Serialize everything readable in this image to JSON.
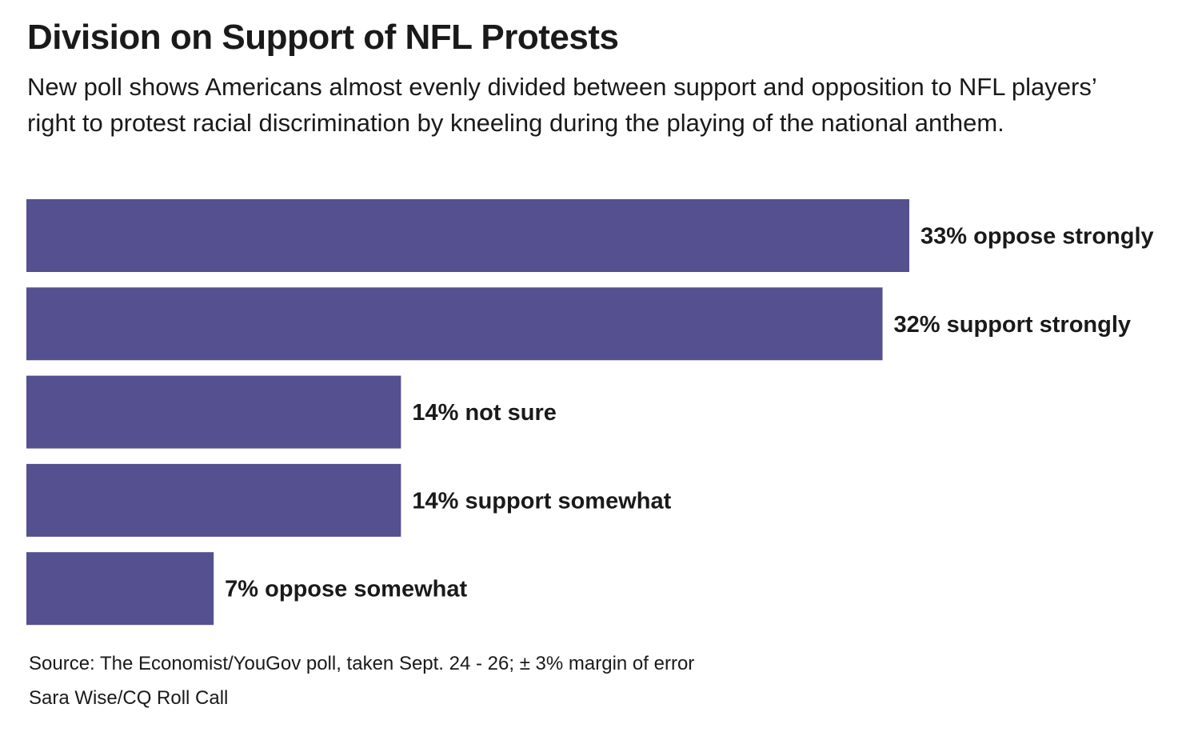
{
  "title": "Division on Support of NFL Protests",
  "subtitle": "New poll shows Americans almost evenly divided between support and opposition to NFL players’ right to protest racial discrimination by kneeling during the playing of the national anthem.",
  "chart_data": {
    "type": "bar",
    "orientation": "horizontal",
    "categories": [
      "oppose strongly",
      "support strongly",
      "not sure",
      "support somewhat",
      "oppose somewhat"
    ],
    "values": [
      33,
      32,
      14,
      14,
      7
    ],
    "labels": [
      "33% oppose strongly",
      "32% support strongly",
      "14% not sure",
      "14% support somewhat",
      "7% oppose somewhat"
    ],
    "unit": "%",
    "bar_color": "#55508f",
    "grid": false,
    "legend": "none"
  },
  "footer": {
    "source": "Source: The Economist/YouGov poll, taken Sept. 24 - 26; ± 3% margin of error",
    "credit": "Sara Wise/CQ Roll Call"
  }
}
